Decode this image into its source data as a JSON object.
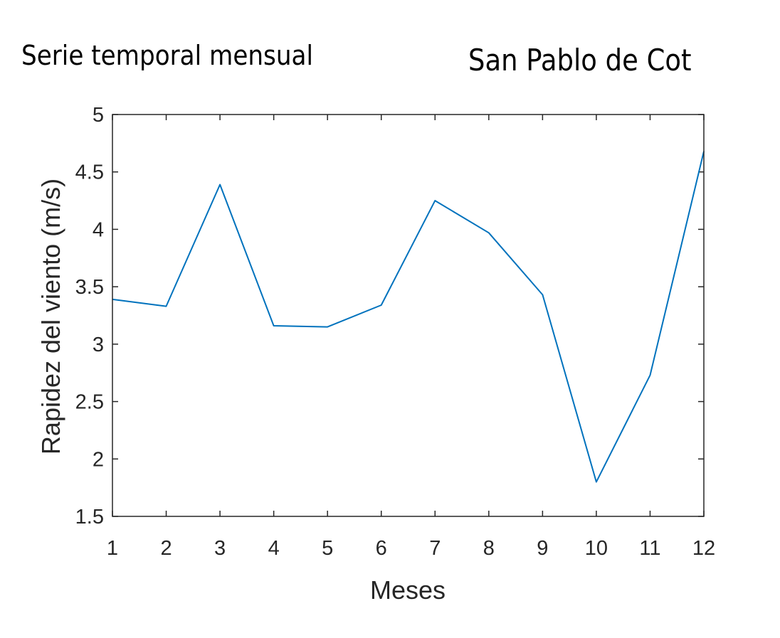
{
  "header": {
    "left_title": "Serie temporal mensual",
    "right_title": "San Pablo de Cot"
  },
  "chart_data": {
    "type": "line",
    "xlabel": "Meses",
    "ylabel": "Rapidez del viento (m/s)",
    "xlim": [
      1,
      12
    ],
    "ylim": [
      1.5,
      5
    ],
    "x_ticks": [
      1,
      2,
      3,
      4,
      5,
      6,
      7,
      8,
      9,
      10,
      11,
      12
    ],
    "y_ticks": [
      1.5,
      2,
      2.5,
      3,
      3.5,
      4,
      4.5,
      5
    ],
    "grid": false,
    "line_color": "#0072BD",
    "series": [
      {
        "x": [
          1,
          2,
          3,
          4,
          5,
          6,
          7,
          8,
          9,
          10,
          11,
          12
        ],
        "values": [
          3.39,
          3.33,
          4.39,
          3.16,
          3.15,
          3.34,
          4.25,
          3.97,
          3.43,
          1.8,
          2.73,
          4.68
        ]
      }
    ]
  }
}
